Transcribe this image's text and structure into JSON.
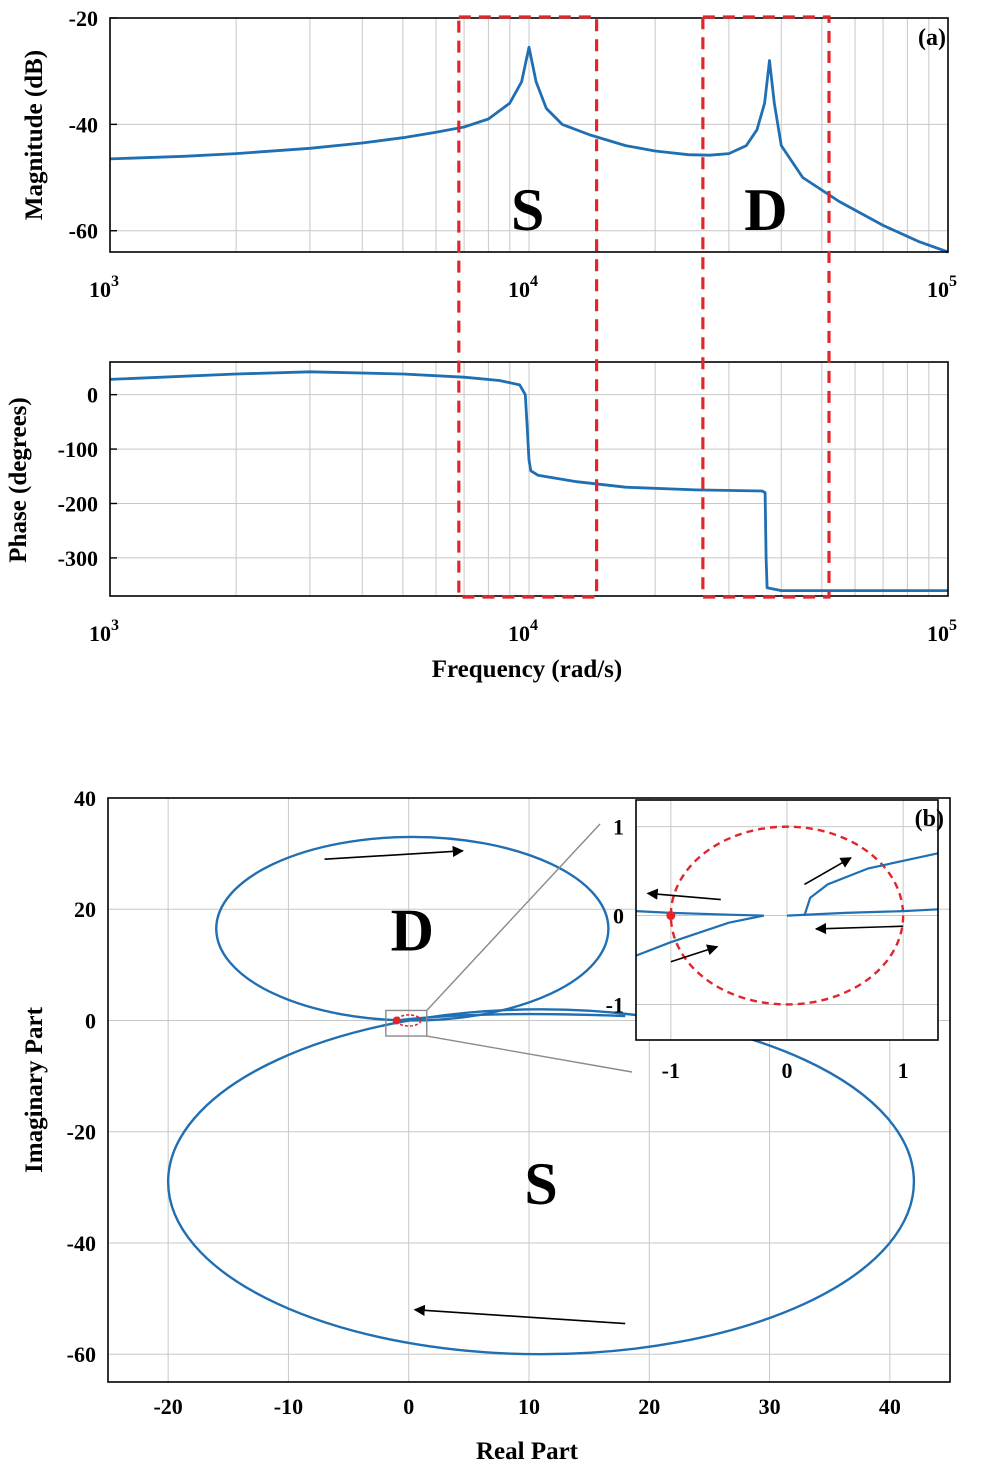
{
  "chart_data": [
    {
      "panel": "(a)",
      "type": "line",
      "subplots": [
        {
          "name": "magnitude",
          "ylabel": "Magnitude (dB)",
          "xscale": "log",
          "xlim": [
            1000,
            100000
          ],
          "ylim": [
            -64,
            -20
          ],
          "yticks": [
            "-20",
            "-40",
            "-60"
          ],
          "xticks": [
            {
              "base": "10",
              "exp": "3"
            },
            {
              "base": "10",
              "exp": "4"
            },
            {
              "base": "10",
              "exp": "5"
            }
          ],
          "series": [
            {
              "name": "magnitude",
              "color": "#1f6fb2",
              "points": [
                [
                  1000,
                  -46.5
                ],
                [
                  1500,
                  -46
                ],
                [
                  2000,
                  -45.5
                ],
                [
                  3000,
                  -44.5
                ],
                [
                  4000,
                  -43.5
                ],
                [
                  5000,
                  -42.5
                ],
                [
                  6000,
                  -41.5
                ],
                [
                  7000,
                  -40.5
                ],
                [
                  8000,
                  -39
                ],
                [
                  9000,
                  -36
                ],
                [
                  9600,
                  -32
                ],
                [
                  10000,
                  -25.5
                ],
                [
                  10400,
                  -32
                ],
                [
                  11000,
                  -37
                ],
                [
                  12000,
                  -40
                ],
                [
                  14000,
                  -42
                ],
                [
                  17000,
                  -44
                ],
                [
                  20000,
                  -45
                ],
                [
                  24000,
                  -45.7
                ],
                [
                  27000,
                  -45.8
                ],
                [
                  30000,
                  -45.5
                ],
                [
                  33000,
                  -44
                ],
                [
                  35000,
                  -41
                ],
                [
                  36500,
                  -36
                ],
                [
                  37500,
                  -28
                ],
                [
                  38500,
                  -36
                ],
                [
                  40000,
                  -44
                ],
                [
                  45000,
                  -50
                ],
                [
                  55000,
                  -54.5
                ],
                [
                  70000,
                  -59
                ],
                [
                  85000,
                  -62
                ],
                [
                  100000,
                  -64
                ]
              ]
            }
          ]
        },
        {
          "name": "phase",
          "ylabel": "Phase (degrees)",
          "xlabel": "Frequency (rad/s)",
          "xscale": "log",
          "xlim": [
            1000,
            100000
          ],
          "ylim": [
            -370,
            60
          ],
          "yticks": [
            "0",
            "-100",
            "-200",
            "-300"
          ],
          "xticks": [
            {
              "base": "10",
              "exp": "3"
            },
            {
              "base": "10",
              "exp": "4"
            },
            {
              "base": "10",
              "exp": "5"
            }
          ],
          "series": [
            {
              "name": "phase",
              "color": "#1f6fb2",
              "points": [
                [
                  1000,
                  28
                ],
                [
                  2000,
                  38
                ],
                [
                  3000,
                  42
                ],
                [
                  5000,
                  38
                ],
                [
                  7000,
                  32
                ],
                [
                  8500,
                  26
                ],
                [
                  9500,
                  18
                ],
                [
                  9800,
                  0
                ],
                [
                  9900,
                  -60
                ],
                [
                  10000,
                  -120
                ],
                [
                  10100,
                  -140
                ],
                [
                  10500,
                  -148
                ],
                [
                  13000,
                  -160
                ],
                [
                  17000,
                  -170
                ],
                [
                  25000,
                  -175
                ],
                [
                  36000,
                  -177
                ],
                [
                  36600,
                  -180
                ],
                [
                  36800,
                  -300
                ],
                [
                  37000,
                  -355
                ],
                [
                  40000,
                  -360
                ],
                [
                  100000,
                  -360
                ]
              ]
            }
          ]
        }
      ],
      "regions": [
        {
          "label": "S",
          "x_range": [
            6800,
            14500
          ],
          "color": "#e0262b"
        },
        {
          "label": "D",
          "x_range": [
            26000,
            52000
          ],
          "color": "#e0262b"
        }
      ]
    },
    {
      "panel": "(b)",
      "type": "line",
      "xlabel": "Real Part",
      "ylabel": "Imaginary Part",
      "xlim": [
        -25,
        45
      ],
      "ylim": [
        -65,
        40
      ],
      "xticks": [
        "-20",
        "-10",
        "0",
        "10",
        "20",
        "30",
        "40"
      ],
      "yticks": [
        "40",
        "20",
        "0",
        "-20",
        "-40",
        "-60"
      ],
      "loops": [
        {
          "label": "D",
          "center": [
            0.3,
            16.5
          ],
          "rx": 16.3,
          "ry": 16.5
        },
        {
          "label": "S",
          "center": [
            11,
            -29
          ],
          "rx": 31,
          "ry": 31
        }
      ],
      "critical_point": [
        -1,
        0
      ],
      "arrows": [
        {
          "from": [
            -7,
            29
          ],
          "to": [
            4.5,
            30.5
          ]
        },
        {
          "from": [
            18,
            -54.5
          ],
          "to": [
            0.5,
            -52
          ]
        }
      ],
      "inset": {
        "xlim": [
          -1.3,
          1.3
        ],
        "ylim": [
          -1.4,
          1.3
        ],
        "xticks": [
          "-1",
          "0",
          "1"
        ],
        "yticks": [
          "1",
          "0",
          "-1"
        ],
        "unit_circle": {
          "center": [
            0,
            0
          ],
          "radius": 1,
          "color": "#e0262b"
        },
        "critical_point": [
          -1,
          0
        ],
        "curves": [
          [
            [
              -1.3,
              0.05
            ],
            [
              -1,
              0.03
            ],
            [
              -0.5,
              0.01
            ],
            [
              -0.2,
              0
            ]
          ],
          [
            [
              -1.3,
              -0.45
            ],
            [
              -1,
              -0.3
            ],
            [
              -0.5,
              -0.08
            ],
            [
              -0.2,
              0
            ]
          ],
          [
            [
              0,
              0
            ],
            [
              0.5,
              0.03
            ],
            [
              1,
              0.05
            ],
            [
              1.3,
              0.07
            ]
          ],
          [
            [
              0.15,
              0
            ],
            [
              0.2,
              0.2
            ],
            [
              0.35,
              0.35
            ],
            [
              0.7,
              0.53
            ],
            [
              1.3,
              0.7
            ]
          ]
        ],
        "arrows": [
          {
            "from": [
              -0.57,
              0.18
            ],
            "to": [
              -1.2,
              0.25
            ]
          },
          {
            "from": [
              -1.0,
              -0.52
            ],
            "to": [
              -0.6,
              -0.35
            ]
          },
          {
            "from": [
              1.0,
              -0.12
            ],
            "to": [
              0.25,
              -0.15
            ]
          },
          {
            "from": [
              0.15,
              0.35
            ],
            "to": [
              0.55,
              0.65
            ]
          }
        ]
      }
    }
  ]
}
